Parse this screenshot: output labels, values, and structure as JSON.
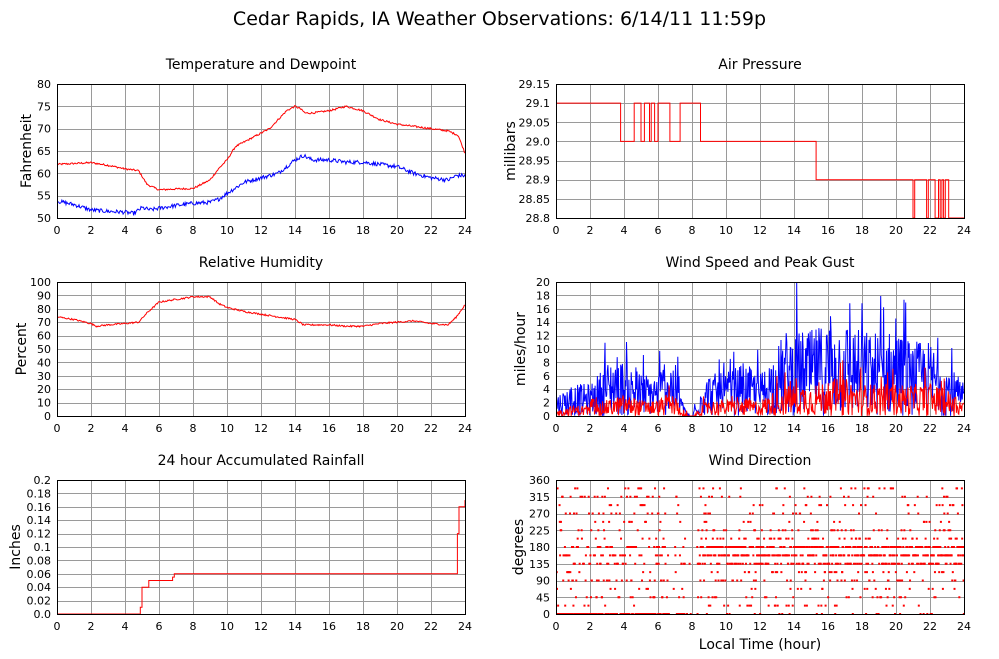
{
  "title": "Cedar Rapids, IA Weather Observations: 6/14/11 11:59p",
  "colors": {
    "red": "#ff0000",
    "blue": "#0000ff",
    "grid": "#9a9a9a"
  },
  "chart_data": [
    {
      "id": "temp",
      "type": "line",
      "title": "Temperature and Dewpoint",
      "ylabel": "Fahrenheit",
      "xlabel": "",
      "xlim": [
        0,
        24
      ],
      "ylim": [
        50,
        80
      ],
      "xticks": [
        0,
        2,
        4,
        6,
        8,
        10,
        12,
        14,
        16,
        18,
        20,
        22,
        24
      ],
      "yticks": [
        50,
        55,
        60,
        65,
        70,
        75,
        80
      ],
      "ytick_decimals": 0,
      "series": [
        {
          "color": "red",
          "noise": 0.2,
          "x": [
            0,
            1,
            2,
            3,
            4,
            4.8,
            5.3,
            6,
            7,
            8,
            9,
            9.5,
            10,
            10.5,
            11,
            12,
            12.5,
            13,
            13.5,
            14,
            14.3,
            14.6,
            15,
            16,
            17,
            18,
            19,
            20,
            21,
            22,
            23,
            23.6,
            24
          ],
          "y": [
            62,
            62.2,
            62.4,
            61.8,
            61,
            60.6,
            57.5,
            56.3,
            56.5,
            56.6,
            58.5,
            61,
            63,
            66,
            67,
            69,
            70,
            72,
            74,
            75,
            74.5,
            73.5,
            73.5,
            74,
            75,
            74,
            72,
            71,
            70.5,
            70,
            69.5,
            68.5,
            64.5
          ]
        },
        {
          "color": "blue",
          "noise": 0.45,
          "x": [
            0,
            1,
            2,
            3,
            4,
            4.5,
            5,
            5.5,
            6,
            7,
            8,
            9,
            9.5,
            10,
            11,
            12,
            13,
            14,
            14.5,
            15,
            16,
            17,
            18,
            19,
            20,
            21,
            22,
            23,
            23.5,
            24
          ],
          "y": [
            53.8,
            53,
            51.8,
            51.5,
            51.3,
            51,
            52.3,
            51.8,
            52.2,
            52.8,
            53.3,
            53.5,
            54.2,
            55.5,
            58,
            59,
            60,
            63,
            64,
            63,
            63,
            62.5,
            62.5,
            62,
            61.5,
            60,
            59,
            58.5,
            59.5,
            59.5
          ]
        }
      ]
    },
    {
      "id": "pressure",
      "type": "line",
      "title": "Air Pressure",
      "ylabel": "millibars",
      "xlabel": "",
      "xlim": [
        0,
        24
      ],
      "ylim": [
        28.8,
        29.15
      ],
      "xticks": [
        0,
        2,
        4,
        6,
        8,
        10,
        12,
        14,
        16,
        18,
        20,
        22,
        24
      ],
      "yticks": [
        28.8,
        28.85,
        28.9,
        28.95,
        29.0,
        29.05,
        29.1,
        29.15
      ],
      "ytick_decimals": 2,
      "ytick_labels": [
        "28.8",
        "28.85",
        "28.9",
        "28.95",
        "29.0",
        "29.05",
        "29.1",
        "29.15"
      ],
      "series": [
        {
          "color": "red",
          "step": true,
          "noise": 0,
          "x": [
            0,
            3.8,
            4.0,
            4.6,
            4.8,
            5.0,
            5.2,
            5.5,
            5.6,
            5.8,
            6.0,
            6.7,
            7.1,
            7.3,
            8.5,
            15.3,
            21.0,
            21.1,
            21.8,
            21.9,
            22.3,
            22.5,
            22.6,
            22.7,
            22.8,
            22.9,
            23.1,
            23.2,
            24
          ],
          "y": [
            29.1,
            29.0,
            29.0,
            29.1,
            29.1,
            29.0,
            29.1,
            29.0,
            29.1,
            29.0,
            29.1,
            29.0,
            29.0,
            29.1,
            29.0,
            28.9,
            28.8,
            28.9,
            28.8,
            28.9,
            28.8,
            28.9,
            28.8,
            28.9,
            28.8,
            28.9,
            28.8,
            28.8,
            28.8
          ]
        }
      ]
    },
    {
      "id": "humidity",
      "type": "line",
      "title": "Relative Humidity",
      "ylabel": "Percent",
      "xlabel": "",
      "xlim": [
        0,
        24
      ],
      "ylim": [
        0,
        100
      ],
      "xticks": [
        0,
        2,
        4,
        6,
        8,
        10,
        12,
        14,
        16,
        18,
        20,
        22,
        24
      ],
      "yticks": [
        0,
        10,
        20,
        30,
        40,
        50,
        60,
        70,
        80,
        90,
        100
      ],
      "ytick_decimals": 0,
      "series": [
        {
          "color": "red",
          "noise": 0.6,
          "x": [
            0,
            1,
            2,
            2.3,
            3,
            4,
            4.8,
            5.3,
            6,
            7,
            8,
            9,
            9.5,
            10,
            11,
            12,
            13,
            14,
            14.5,
            15,
            16,
            17,
            18,
            19,
            20,
            21,
            22,
            23,
            23.5,
            24
          ],
          "y": [
            74,
            72,
            69,
            67,
            68,
            69,
            70,
            77,
            85,
            87,
            89,
            89,
            84,
            81,
            78,
            76,
            74,
            72,
            68,
            68,
            68,
            67,
            67,
            69,
            70,
            71,
            69,
            68,
            74,
            83
          ]
        }
      ]
    },
    {
      "id": "wind",
      "type": "line",
      "title": "Wind Speed and Peak Gust",
      "ylabel": "miles/hour",
      "xlabel": "",
      "xlim": [
        0,
        24
      ],
      "ylim": [
        0,
        20
      ],
      "xticks": [
        0,
        2,
        4,
        6,
        8,
        10,
        12,
        14,
        16,
        18,
        20,
        22,
        24
      ],
      "yticks": [
        0,
        2,
        4,
        6,
        8,
        10,
        12,
        14,
        16,
        18,
        20
      ],
      "ytick_decimals": 0,
      "series": [
        {
          "color": "blue",
          "spiky": true,
          "x": [
            0,
            1,
            2,
            3,
            3.5,
            4,
            5,
            6,
            6.5,
            7,
            7.5,
            8,
            8.5,
            9,
            10,
            11,
            12,
            12.8,
            13.5,
            14,
            15,
            16,
            17,
            18,
            19,
            20,
            21,
            22,
            23,
            24
          ],
          "y": [
            2,
            3,
            3,
            5,
            6,
            5,
            4,
            4,
            6,
            5,
            1,
            0,
            3,
            4,
            4,
            5,
            4,
            6,
            8,
            8,
            8,
            9,
            9,
            8,
            8,
            8,
            7,
            7,
            5,
            3
          ]
        },
        {
          "color": "red",
          "spiky": true,
          "x": [
            0,
            1,
            2,
            3,
            4,
            5,
            6,
            6.5,
            7,
            7.5,
            8,
            8.5,
            9,
            10,
            11,
            12,
            13,
            14,
            15,
            16,
            17,
            18,
            19,
            20,
            21,
            22,
            23,
            24
          ],
          "y": [
            0.5,
            1,
            1,
            1.5,
            2,
            1.5,
            1.5,
            2,
            2,
            0.3,
            0,
            1,
            1.5,
            1.5,
            1.5,
            1.5,
            2.5,
            3,
            3,
            3.5,
            3.5,
            3,
            3,
            3,
            3,
            3,
            2.5,
            1.5
          ]
        }
      ]
    },
    {
      "id": "rain",
      "type": "line",
      "title": "24 hour Accumulated Rainfall",
      "ylabel": "Inches",
      "xlabel": "",
      "xlim": [
        0,
        24
      ],
      "ylim": [
        0,
        0.2
      ],
      "xticks": [
        0,
        2,
        4,
        6,
        8,
        10,
        12,
        14,
        16,
        18,
        20,
        22,
        24
      ],
      "yticks": [
        0,
        0.02,
        0.04,
        0.06,
        0.08,
        0.1,
        0.12,
        0.14,
        0.16,
        0.18,
        0.2
      ],
      "ytick_labels": [
        "0.0",
        "0.02",
        "0.04",
        "0.06",
        "0.08",
        "0.1",
        "0.12",
        "0.14",
        "0.16",
        "0.18",
        "0.2"
      ],
      "series": [
        {
          "color": "red",
          "step": true,
          "noise": 0,
          "x": [
            0,
            4.8,
            4.9,
            5.0,
            5.3,
            5.4,
            5.5,
            6.7,
            6.8,
            6.9,
            7.0,
            23.3,
            23.55,
            23.65,
            23.9,
            24
          ],
          "y": [
            0,
            0,
            0.01,
            0.04,
            0.04,
            0.05,
            0.05,
            0.05,
            0.055,
            0.06,
            0.06,
            0.06,
            0.12,
            0.16,
            0.16,
            0.17
          ]
        }
      ]
    },
    {
      "id": "direction",
      "type": "scatter",
      "title": "Wind Direction",
      "ylabel": "degrees",
      "xlabel": "Local Time (hour)",
      "xlim": [
        0,
        24
      ],
      "ylim": [
        0,
        360
      ],
      "xticks": [
        0,
        2,
        4,
        6,
        8,
        10,
        12,
        14,
        16,
        18,
        20,
        22,
        24
      ],
      "yticks": [
        0,
        45,
        90,
        135,
        180,
        225,
        270,
        315,
        360
      ],
      "ytick_decimals": 0,
      "levels": [
        0,
        22.5,
        45,
        67.5,
        90,
        112.5,
        135,
        157.5,
        180,
        202.5,
        225,
        247.5,
        270,
        292.5,
        315,
        337.5,
        360
      ],
      "level_weights_early": [
        14,
        1,
        2,
        1,
        2,
        1,
        3,
        3,
        4,
        1,
        1,
        1,
        2,
        1,
        2,
        1,
        3
      ],
      "level_weights_late": [
        1,
        1,
        1,
        1,
        2,
        2,
        6,
        10,
        10,
        3,
        2,
        1,
        1,
        1,
        1,
        1,
        1
      ],
      "gaps": [
        [
          6.6,
          7.0
        ],
        [
          7.6,
          8.3
        ]
      ],
      "points_per_hour": 60,
      "series": [
        {
          "color": "red"
        }
      ]
    }
  ]
}
